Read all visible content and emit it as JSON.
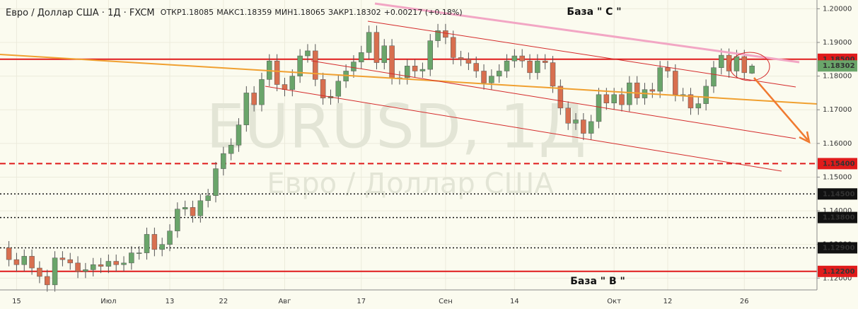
{
  "chart_data": {
    "type": "candlestick",
    "header": {
      "symbol": "Евро / Доллар США · 1Д · FXCM",
      "items": [
        {
          "label": "ОТКР",
          "value": 1.18085
        },
        {
          "label": "МАКС",
          "value": 1.18359
        },
        {
          "label": "МИН",
          "value": 1.18065
        },
        {
          "label": "ЗАКР",
          "value": 1.18302
        }
      ],
      "change": "+0.00217 (+0.18%)"
    },
    "watermark": [
      "EURUSD, 1Д",
      "Евро / Доллар США"
    ],
    "annotations": [
      "База \" C \"",
      "База \" B \""
    ],
    "up_color": "#6aa56a",
    "down_color": "#d86f4f",
    "ylim": [
      1.1165,
      1.2026
    ],
    "yticks": [
      {
        "value": 1.2,
        "label": "1.20000"
      },
      {
        "value": 1.19,
        "label": "1.19000"
      },
      {
        "value": 1.18,
        "label": "1.18000"
      },
      {
        "value": 1.17,
        "label": "1.17000"
      },
      {
        "value": 1.16,
        "label": "1.16000"
      },
      {
        "value": 1.15,
        "label": "1.15000"
      },
      {
        "value": 1.14,
        "label": "1.14000"
      },
      {
        "value": 1.13,
        "label": "1.13000"
      },
      {
        "value": 1.12,
        "label": "1.12000"
      }
    ],
    "grid": true,
    "levels": [
      {
        "value": 1.185,
        "label": "1.18500",
        "style": "solid",
        "color": "#e01b1b"
      },
      {
        "value": 1.154,
        "label": "1.15400",
        "style": "dashed",
        "color": "#e01b1b"
      },
      {
        "value": 1.145,
        "label": "1.14500",
        "style": "dotted",
        "color": "#111111"
      },
      {
        "value": 1.138,
        "label": "1.13800",
        "style": "dotted",
        "color": "#111111"
      },
      {
        "value": 1.129,
        "label": "1.12900",
        "style": "dotted",
        "color": "#111111"
      },
      {
        "value": 1.122,
        "label": "1.12200",
        "style": "solid",
        "color": "#e01b1b"
      }
    ],
    "last_price": {
      "value": 1.18302,
      "label": "1.18302",
      "color": "#6aa56a"
    },
    "categories": [
      null,
      "15",
      null,
      null,
      null,
      null,
      null,
      null,
      null,
      null,
      null,
      null,
      null,
      "Июл",
      null,
      null,
      null,
      null,
      null,
      null,
      null,
      "13",
      null,
      null,
      null,
      null,
      null,
      null,
      "22",
      null,
      null,
      null,
      null,
      null,
      null,
      null,
      "Авг",
      null,
      null,
      null,
      null,
      null,
      null,
      null,
      null,
      null,
      "17",
      null,
      null,
      null,
      null,
      null,
      null,
      null,
      null,
      null,
      null,
      "Сен",
      null,
      null,
      null,
      null,
      null,
      null,
      null,
      null,
      "14",
      null,
      null,
      null,
      null,
      null,
      null,
      null,
      null,
      null,
      null,
      null,
      null,
      "Окт",
      null,
      null,
      null,
      null,
      null,
      null,
      "12",
      null,
      null,
      null,
      null,
      null,
      null,
      null,
      null,
      null,
      "26",
      null
    ],
    "ohlc": [
      [
        1.129,
        1.131,
        1.1235,
        1.1255
      ],
      [
        1.1255,
        1.1275,
        1.122,
        1.124
      ],
      [
        1.124,
        1.1285,
        1.122,
        1.1265
      ],
      [
        1.1265,
        1.1285,
        1.121,
        1.123
      ],
      [
        1.123,
        1.125,
        1.1185,
        1.1205
      ],
      [
        1.1205,
        1.1225,
        1.116,
        1.118
      ],
      [
        1.118,
        1.128,
        1.116,
        1.126
      ],
      [
        1.126,
        1.128,
        1.1235,
        1.1255
      ],
      [
        1.1255,
        1.1275,
        1.1225,
        1.1245
      ],
      [
        1.1245,
        1.1265,
        1.12,
        1.122
      ],
      [
        1.122,
        1.1245,
        1.12,
        1.1225
      ],
      [
        1.1225,
        1.126,
        1.1205,
        1.124
      ],
      [
        1.124,
        1.126,
        1.1215,
        1.1235
      ],
      [
        1.1235,
        1.127,
        1.1215,
        1.125
      ],
      [
        1.125,
        1.127,
        1.122,
        1.124
      ],
      [
        1.124,
        1.1265,
        1.122,
        1.1245
      ],
      [
        1.1245,
        1.1295,
        1.1225,
        1.1275
      ],
      [
        1.1275,
        1.1295,
        1.1255,
        1.1275
      ],
      [
        1.1275,
        1.135,
        1.1255,
        1.133
      ],
      [
        1.133,
        1.135,
        1.1265,
        1.1285
      ],
      [
        1.1285,
        1.132,
        1.1265,
        1.13
      ],
      [
        1.13,
        1.136,
        1.128,
        1.134
      ],
      [
        1.134,
        1.1425,
        1.132,
        1.1405
      ],
      [
        1.1405,
        1.143,
        1.1385,
        1.141
      ],
      [
        1.141,
        1.143,
        1.1365,
        1.1385
      ],
      [
        1.1385,
        1.145,
        1.1365,
        1.143
      ],
      [
        1.143,
        1.1465,
        1.141,
        1.1445
      ],
      [
        1.1445,
        1.1545,
        1.1425,
        1.1525
      ],
      [
        1.1525,
        1.159,
        1.1505,
        1.157
      ],
      [
        1.157,
        1.1615,
        1.155,
        1.1595
      ],
      [
        1.1595,
        1.1675,
        1.1575,
        1.1655
      ],
      [
        1.1655,
        1.177,
        1.1635,
        1.175
      ],
      [
        1.175,
        1.177,
        1.1695,
        1.1715
      ],
      [
        1.1715,
        1.181,
        1.1695,
        1.179
      ],
      [
        1.179,
        1.1865,
        1.177,
        1.1845
      ],
      [
        1.1845,
        1.1865,
        1.1755,
        1.1775
      ],
      [
        1.1775,
        1.1795,
        1.174,
        1.176
      ],
      [
        1.176,
        1.182,
        1.174,
        1.18
      ],
      [
        1.18,
        1.188,
        1.178,
        1.186
      ],
      [
        1.186,
        1.1895,
        1.184,
        1.1875
      ],
      [
        1.1875,
        1.1895,
        1.177,
        1.179
      ],
      [
        1.179,
        1.181,
        1.1715,
        1.1735
      ],
      [
        1.1735,
        1.176,
        1.1715,
        1.174
      ],
      [
        1.174,
        1.1805,
        1.172,
        1.1785
      ],
      [
        1.1785,
        1.1835,
        1.1765,
        1.1815
      ],
      [
        1.1815,
        1.1862,
        1.1795,
        1.1842
      ],
      [
        1.1842,
        1.189,
        1.1822,
        1.187
      ],
      [
        1.187,
        1.195,
        1.185,
        1.193
      ],
      [
        1.193,
        1.195,
        1.182,
        1.184
      ],
      [
        1.184,
        1.191,
        1.182,
        1.189
      ],
      [
        1.189,
        1.191,
        1.1775,
        1.1795
      ],
      [
        1.1795,
        1.1815,
        1.1775,
        1.1795
      ],
      [
        1.1795,
        1.185,
        1.1775,
        1.183
      ],
      [
        1.183,
        1.185,
        1.1795,
        1.1815
      ],
      [
        1.1815,
        1.184,
        1.1795,
        1.182
      ],
      [
        1.182,
        1.1925,
        1.18,
        1.1905
      ],
      [
        1.1905,
        1.1955,
        1.1885,
        1.1935
      ],
      [
        1.1935,
        1.1955,
        1.1895,
        1.1915
      ],
      [
        1.1915,
        1.1935,
        1.1835,
        1.1855
      ],
      [
        1.1855,
        1.1875,
        1.183,
        1.185
      ],
      [
        1.185,
        1.187,
        1.1818,
        1.1838
      ],
      [
        1.1838,
        1.1858,
        1.1795,
        1.1815
      ],
      [
        1.1815,
        1.1835,
        1.176,
        1.178
      ],
      [
        1.178,
        1.182,
        1.176,
        1.18
      ],
      [
        1.18,
        1.1835,
        1.178,
        1.1815
      ],
      [
        1.1815,
        1.1865,
        1.1795,
        1.1845
      ],
      [
        1.1845,
        1.188,
        1.1825,
        1.186
      ],
      [
        1.186,
        1.188,
        1.1825,
        1.1845
      ],
      [
        1.1845,
        1.1865,
        1.179,
        1.181
      ],
      [
        1.181,
        1.1865,
        1.179,
        1.1845
      ],
      [
        1.1845,
        1.1865,
        1.182,
        1.184
      ],
      [
        1.184,
        1.186,
        1.175,
        1.177
      ],
      [
        1.177,
        1.179,
        1.1685,
        1.1705
      ],
      [
        1.1705,
        1.1725,
        1.164,
        1.166
      ],
      [
        1.166,
        1.169,
        1.164,
        1.167
      ],
      [
        1.167,
        1.169,
        1.161,
        1.163
      ],
      [
        1.163,
        1.1685,
        1.161,
        1.1665
      ],
      [
        1.1665,
        1.1765,
        1.1645,
        1.1745
      ],
      [
        1.1745,
        1.1765,
        1.17,
        1.172
      ],
      [
        1.172,
        1.1765,
        1.17,
        1.1745
      ],
      [
        1.1745,
        1.1765,
        1.1695,
        1.1715
      ],
      [
        1.1715,
        1.18,
        1.1695,
        1.178
      ],
      [
        1.178,
        1.18,
        1.1715,
        1.1735
      ],
      [
        1.1735,
        1.178,
        1.1715,
        1.176
      ],
      [
        1.176,
        1.178,
        1.1735,
        1.1755
      ],
      [
        1.1755,
        1.1845,
        1.1735,
        1.1825
      ],
      [
        1.1825,
        1.1845,
        1.1795,
        1.1815
      ],
      [
        1.1815,
        1.1835,
        1.1725,
        1.1745
      ],
      [
        1.1745,
        1.1765,
        1.1725,
        1.1745
      ],
      [
        1.1745,
        1.1765,
        1.1685,
        1.1705
      ],
      [
        1.1705,
        1.1738,
        1.1685,
        1.1718
      ],
      [
        1.1718,
        1.179,
        1.1698,
        1.177
      ],
      [
        1.177,
        1.1845,
        1.175,
        1.1825
      ],
      [
        1.1825,
        1.1882,
        1.1805,
        1.1862
      ],
      [
        1.1862,
        1.1882,
        1.1795,
        1.1815
      ],
      [
        1.1815,
        1.1878,
        1.1795,
        1.1858
      ],
      [
        1.1858,
        1.1878,
        1.179,
        1.181
      ],
      [
        1.18085,
        1.18359,
        1.18065,
        1.18302
      ]
    ]
  }
}
